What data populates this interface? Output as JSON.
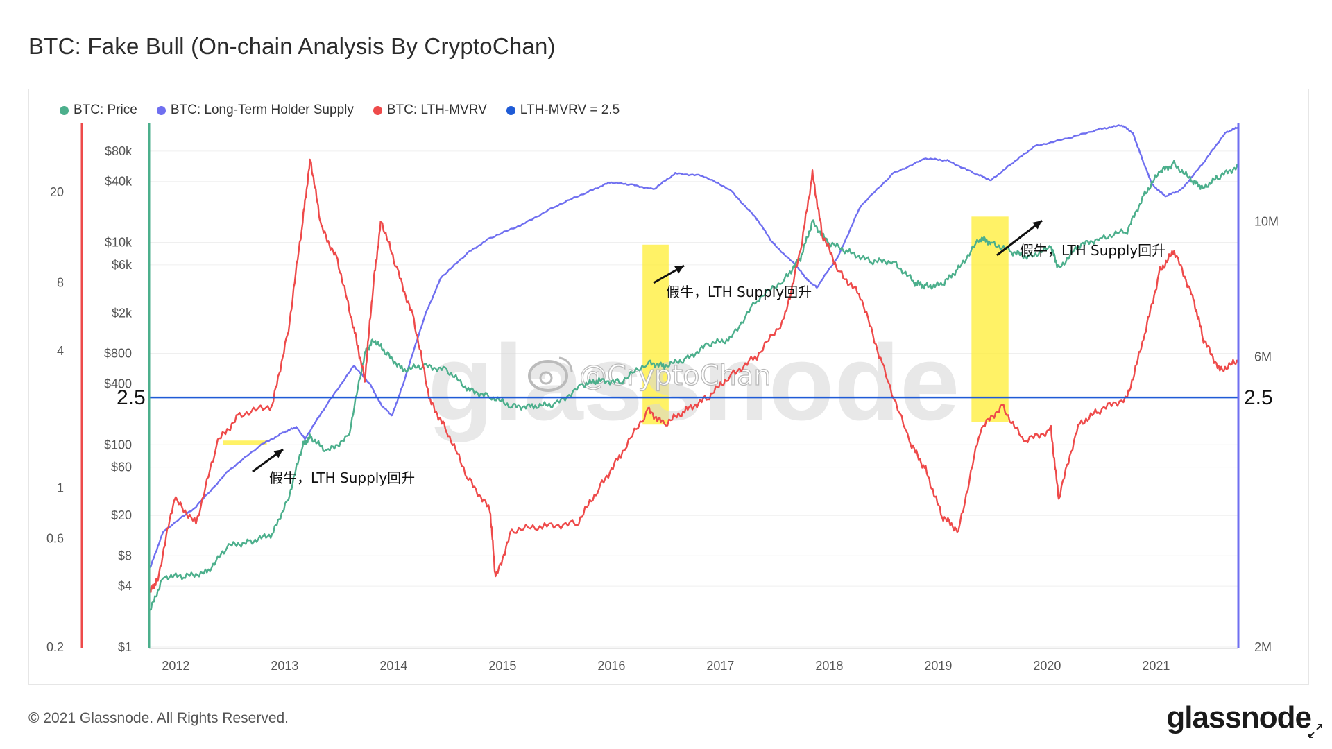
{
  "title": "BTC: Fake Bull (On-chain Analysis By CryptoChan)",
  "footer": {
    "copyright": "© 2021 Glassnode. All Rights Reserved.",
    "brand": "glassnode"
  },
  "watermark": {
    "brand": "glassnode",
    "handle": "@CryptoChan"
  },
  "colors": {
    "price": "#4caf8c",
    "lth_supply": "#6f6ff0",
    "lth_mvrv": "#ee4a4a",
    "threshold": "#1f5bd6",
    "highlight": "#ffee33"
  },
  "chart_data": {
    "type": "line",
    "title": "BTC: Fake Bull (On-chain Analysis By CryptoChan)",
    "x_axis": {
      "ticks": [
        "2012",
        "2013",
        "2014",
        "2015",
        "2016",
        "2017",
        "2018",
        "2019",
        "2020",
        "2021"
      ],
      "range": [
        2011.87,
        2021.87
      ]
    },
    "y_axis_price": {
      "scale": "log",
      "ticks": [
        "$1",
        "$4",
        "$8",
        "$20",
        "$60",
        "$100",
        "$400",
        "$800",
        "$2k",
        "$6k",
        "$10k",
        "$40k",
        "$80k"
      ],
      "tick_values": [
        1,
        4,
        8,
        20,
        60,
        100,
        400,
        800,
        2000,
        6000,
        10000,
        40000,
        80000
      ],
      "range": [
        1,
        150000
      ]
    },
    "y_axis_mvrv": {
      "scale": "log",
      "ticks": [
        "0.2",
        "0.6",
        "1",
        "4",
        "8",
        "20"
      ],
      "tick_values": [
        0.2,
        0.6,
        1,
        4,
        8,
        20
      ],
      "range": [
        0.2,
        40
      ]
    },
    "y_axis_supply": {
      "scale": "log",
      "ticks": [
        "2M",
        "6M",
        "10M"
      ],
      "tick_values": [
        2,
        6,
        10
      ],
      "range": [
        2,
        14.5
      ]
    },
    "legend": {
      "position": "top-left"
    },
    "series": [
      {
        "name": "BTC: Price",
        "axis": "price",
        "x": [
          2011.88,
          2012.0,
          2012.2,
          2012.4,
          2012.6,
          2012.8,
          2013.0,
          2013.15,
          2013.28,
          2013.35,
          2013.5,
          2013.7,
          2013.85,
          2013.93,
          2014.05,
          2014.2,
          2014.4,
          2014.6,
          2014.8,
          2015.0,
          2015.2,
          2015.4,
          2015.6,
          2015.85,
          2016.0,
          2016.2,
          2016.45,
          2016.6,
          2016.8,
          2017.0,
          2017.2,
          2017.45,
          2017.7,
          2017.85,
          2017.96,
          2018.1,
          2018.3,
          2018.5,
          2018.7,
          2018.9,
          2019.0,
          2019.15,
          2019.3,
          2019.5,
          2019.6,
          2019.8,
          2019.95,
          2020.15,
          2020.22,
          2020.4,
          2020.6,
          2020.85,
          2021.0,
          2021.15,
          2021.28,
          2021.45,
          2021.55,
          2021.7,
          2021.87
        ],
        "values": [
          2.3,
          5,
          5,
          5.5,
          10,
          11,
          13,
          30,
          100,
          120,
          85,
          120,
          800,
          1100,
          800,
          550,
          600,
          550,
          350,
          300,
          240,
          240,
          250,
          390,
          430,
          420,
          650,
          600,
          700,
          980,
          1100,
          2700,
          4300,
          7000,
          16000,
          10000,
          8000,
          6500,
          6500,
          4000,
          3700,
          3800,
          5500,
          11000,
          10000,
          8000,
          7200,
          9000,
          5500,
          9200,
          11000,
          13000,
          29000,
          50000,
          60000,
          40000,
          35000,
          45000,
          57000
        ]
      },
      {
        "name": "BTC: Long-Term Holder Supply",
        "axis": "supply",
        "x": [
          2011.88,
          2012.0,
          2012.3,
          2012.6,
          2012.9,
          2013.1,
          2013.22,
          2013.3,
          2013.5,
          2013.75,
          2013.9,
          2014.0,
          2014.1,
          2014.2,
          2014.4,
          2014.55,
          2014.8,
          2015.0,
          2015.3,
          2015.6,
          2015.9,
          2016.1,
          2016.3,
          2016.5,
          2016.7,
          2016.95,
          2017.2,
          2017.45,
          2017.6,
          2017.8,
          2017.92,
          2018.0,
          2018.2,
          2018.4,
          2018.7,
          2019.0,
          2019.2,
          2019.45,
          2019.6,
          2019.8,
          2020.0,
          2020.3,
          2020.6,
          2020.8,
          2020.9,
          2021.0,
          2021.08,
          2021.2,
          2021.35,
          2021.55,
          2021.75,
          2021.87
        ],
        "values": [
          2.7,
          3.1,
          3.4,
          3.9,
          4.3,
          4.5,
          4.6,
          4.4,
          5.0,
          5.8,
          5.4,
          5.0,
          4.8,
          5.4,
          7.0,
          8.1,
          8.9,
          9.4,
          9.9,
          10.6,
          11.2,
          11.6,
          11.5,
          11.3,
          12.0,
          11.9,
          11.3,
          10.1,
          9.2,
          8.5,
          8.0,
          7.8,
          8.8,
          10.6,
          12.0,
          12.7,
          12.6,
          12.0,
          11.7,
          12.5,
          13.3,
          13.7,
          14.2,
          14.4,
          14.0,
          12.5,
          11.5,
          11.0,
          11.3,
          12.5,
          14.0,
          14.3
        ]
      },
      {
        "name": "BTC: LTH-MVRV",
        "axis": "mvrv",
        "x": [
          2011.88,
          2011.95,
          2012.1,
          2012.3,
          2012.5,
          2012.7,
          2013.0,
          2013.15,
          2013.28,
          2013.35,
          2013.45,
          2013.6,
          2013.75,
          2013.85,
          2013.93,
          2014.0,
          2014.15,
          2014.3,
          2014.45,
          2014.6,
          2014.8,
          2015.0,
          2015.05,
          2015.2,
          2015.5,
          2015.8,
          2016.0,
          2016.2,
          2016.45,
          2016.6,
          2016.8,
          2017.0,
          2017.2,
          2017.45,
          2017.7,
          2017.85,
          2017.96,
          2018.05,
          2018.2,
          2018.4,
          2018.6,
          2018.85,
          2019.0,
          2019.15,
          2019.3,
          2019.5,
          2019.7,
          2019.9,
          2020.15,
          2020.22,
          2020.4,
          2020.6,
          2020.85,
          2021.0,
          2021.15,
          2021.28,
          2021.45,
          2021.55,
          2021.7,
          2021.87
        ],
        "values": [
          0.35,
          0.4,
          0.9,
          0.7,
          1.6,
          2.1,
          2.3,
          5.0,
          15,
          28,
          14,
          10,
          5.0,
          3.0,
          8.0,
          15,
          9.0,
          5.5,
          2.4,
          1.8,
          1.1,
          0.8,
          0.4,
          0.65,
          0.68,
          0.7,
          1.0,
          1.4,
          2.2,
          1.9,
          2.2,
          2.5,
          3.1,
          3.8,
          5.5,
          11,
          24,
          13,
          9.0,
          7.0,
          3.5,
          1.6,
          1.2,
          0.75,
          0.65,
          1.8,
          2.3,
          1.6,
          1.8,
          0.9,
          1.9,
          2.2,
          2.5,
          4.5,
          9.0,
          11,
          7.0,
          4.5,
          3.3,
          3.6
        ]
      },
      {
        "name": "LTH-MVRV = 2.5",
        "axis": "mvrv",
        "x": [
          2011.87,
          2021.87
        ],
        "values": [
          2.5,
          2.5
        ]
      }
    ],
    "highlights": [
      {
        "x": [
          2012.55,
          2012.95
        ]
      },
      {
        "x": [
          2016.4,
          2016.64
        ]
      },
      {
        "x": [
          2019.42,
          2019.76
        ]
      }
    ],
    "annotations": [
      {
        "text": "假牛，LTH Supply回升",
        "x": 2013.0
      },
      {
        "text": "假牛，LTH Supply回升",
        "x": 2016.6
      },
      {
        "text": "假牛，LTH Supply回升",
        "x": 2019.8
      },
      {
        "text": "2.5",
        "side": "left"
      },
      {
        "text": "2.5",
        "side": "right"
      }
    ]
  }
}
